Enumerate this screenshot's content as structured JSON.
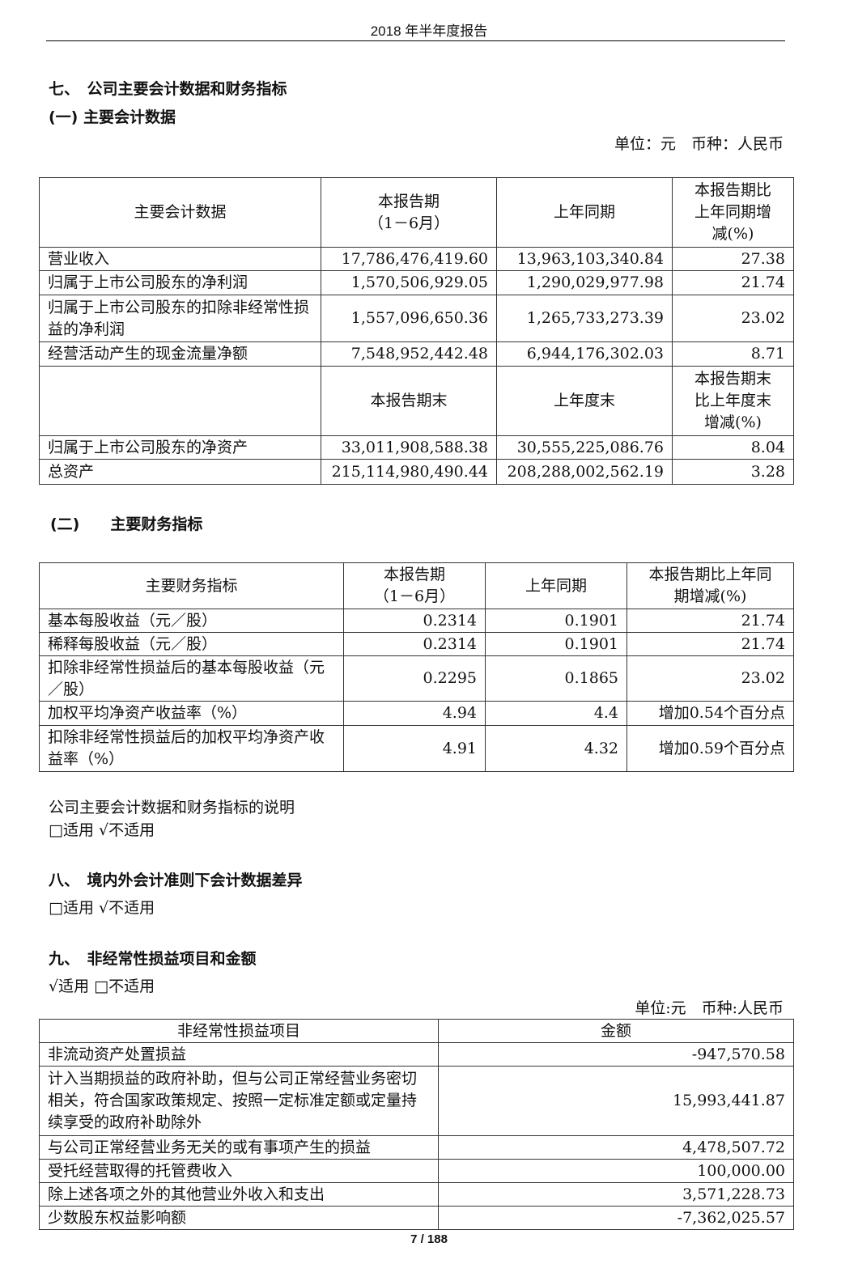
{
  "header": {
    "title": "2018 年半年度报告"
  },
  "section7": {
    "title": "七、　公司主要会计数据和财务指标",
    "sub1": "(一) 主要会计数据",
    "unit": "单位：元　币种：人民币",
    "table1": {
      "rows": [
        [
          "主要会计数据",
          "本报告期\n（1－6月）",
          "上年同期",
          "本报告期比\n上年同期增\n减(%)"
        ],
        [
          "营业收入",
          "17,786,476,419.60",
          "13,963,103,340.84",
          "27.38"
        ],
        [
          "归属于上市公司股东的净利润",
          "1,570,506,929.05",
          "1,290,029,977.98",
          "21.74"
        ],
        [
          "归属于上市公司股东的扣除非经常性损益的净利润",
          "1,557,096,650.36",
          "1,265,733,273.39",
          "23.02"
        ],
        [
          "经营活动产生的现金流量净额",
          "7,548,952,442.48",
          "6,944,176,302.03",
          "8.71"
        ],
        [
          "",
          "本报告期末",
          "上年度末",
          "本报告期末\n比上年度末\n增减(%)"
        ],
        [
          "归属于上市公司股东的净资产",
          "33,011,908,588.38",
          "30,555,225,086.76",
          "8.04"
        ],
        [
          "总资产",
          "215,114,980,490.44",
          "208,288,002,562.19",
          "3.28"
        ]
      ]
    },
    "sub2": "(二)　　主要财务指标",
    "table2": {
      "rows": [
        [
          "主要财务指标",
          "本报告期\n（1－6月）",
          "上年同期",
          "本报告期比上年同\n期增减(%)"
        ],
        [
          "基本每股收益（元／股）",
          "0.2314",
          "0.1901",
          "21.74"
        ],
        [
          "稀释每股收益（元／股）",
          "0.2314",
          "0.1901",
          "21.74"
        ],
        [
          "扣除非经常性损益后的基本每股收益（元／股）",
          "0.2295",
          "0.1865",
          "23.02"
        ],
        [
          "加权平均净资产收益率（%）",
          "4.94",
          "4.4",
          "增加0.54个百分点"
        ],
        [
          "扣除非经常性损益后的加权平均净资产收益率（%）",
          "4.91",
          "4.32",
          "增加0.59个百分点"
        ]
      ]
    },
    "note": "公司主要会计数据和财务指标的说明",
    "note_status": "□适用 √不适用"
  },
  "section8": {
    "title": "八、　境内外会计准则下会计数据差异",
    "status": "□适用 √不适用"
  },
  "section9": {
    "title": "九、　非经常性损益项目和金额",
    "status": "√适用 □不适用",
    "unit": "单位:元　币种:人民币",
    "table3": {
      "rows": [
        [
          "非经常性损益项目",
          "金额"
        ],
        [
          "非流动资产处置损益",
          "-947,570.58"
        ],
        [
          "计入当期损益的政府补助，但与公司正常经营业务密切相关，符合国家政策规定、按照一定标准定额或定量持续享受的政府补助除外",
          "15,993,441.87"
        ],
        [
          "与公司正常经营业务无关的或有事项产生的损益",
          "4,478,507.72"
        ],
        [
          "受托经营取得的托管费收入",
          "100,000.00"
        ],
        [
          "除上述各项之外的其他营业外收入和支出",
          "3,571,228.73"
        ],
        [
          "少数股东权益影响额",
          "-7,362,025.57"
        ]
      ]
    }
  },
  "footer": {
    "page": "7 / 188"
  }
}
